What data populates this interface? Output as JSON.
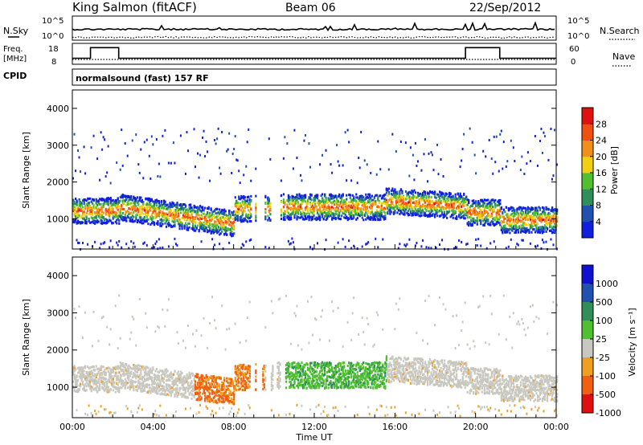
{
  "header": {
    "station": "King Salmon (fitACF)",
    "beam": "Beam 06",
    "date": "22/Sep/2012",
    "program": "normalsound (fast) 157 RF"
  },
  "chart_data": [
    {
      "type": "line",
      "panel": "noise",
      "left_label": "N.Sky",
      "right_label": "N.Search",
      "left_ticks": [
        "10^5",
        "10^0"
      ],
      "right_ticks": [
        "10^5",
        "10^0"
      ],
      "series": [
        {
          "name": "N.Sky",
          "style": "solid",
          "level": 0.45
        },
        {
          "name": "N.Search",
          "style": "dotted",
          "level": 0.12
        }
      ]
    },
    {
      "type": "line",
      "panel": "frequency",
      "left_label": "Freq. [MHz]",
      "right_label": "Nave",
      "cpid_label": "CPID",
      "left_ticks": [
        18,
        8
      ],
      "right_ticks": [
        60,
        0
      ],
      "freq_steps": [
        {
          "start_h": 0.0,
          "end_h": 0.9,
          "mhz": 10.5
        },
        {
          "start_h": 0.9,
          "end_h": 2.3,
          "mhz": 16.5
        },
        {
          "start_h": 2.3,
          "end_h": 19.5,
          "mhz": 10.5
        },
        {
          "start_h": 19.5,
          "end_h": 21.2,
          "mhz": 16.5
        },
        {
          "start_h": 21.2,
          "end_h": 24.0,
          "mhz": 10.5
        }
      ]
    },
    {
      "type": "heatmap",
      "panel": "power",
      "ylabel": "Slant Range [km]",
      "yticks": [
        1000,
        2000,
        3000,
        4000
      ],
      "ylim": [
        180,
        4500
      ],
      "colorbar_label": "Power [dB]",
      "colorbar_ticks": [
        4,
        8,
        12,
        16,
        20,
        24,
        28
      ],
      "colorbar_colors": [
        "#1020e0",
        "#2050b0",
        "#2e8f5a",
        "#50c030",
        "#f0d010",
        "#f09018",
        "#f05010",
        "#e01010"
      ]
    },
    {
      "type": "heatmap",
      "panel": "velocity",
      "ylabel": "Slant Range [km]",
      "yticks": [
        1000,
        2000,
        3000,
        4000
      ],
      "ylim": [
        180,
        4500
      ],
      "colorbar_label": "Velocity [m s⁻¹]",
      "colorbar_ticks": [
        "1000",
        "500",
        "100",
        "25",
        "-25",
        "-100",
        "-500",
        "-1000"
      ],
      "colorbar_colors": [
        "#1010d0",
        "#2050b0",
        "#2e8f5a",
        "#50c030",
        "#c8c8c0",
        "#f0a020",
        "#f06010",
        "#e01010"
      ]
    }
  ],
  "xaxis": {
    "label": "Time UT",
    "ticks": [
      "00:00",
      "04:00",
      "08:00",
      "12:00",
      "16:00",
      "20:00",
      "00:00"
    ]
  }
}
